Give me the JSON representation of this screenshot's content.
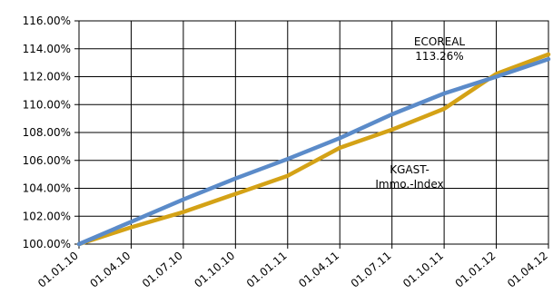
{
  "chart_data": {
    "type": "line",
    "title": "",
    "xlabel": "",
    "ylabel": "",
    "x": [
      "01.01.10",
      "01.04.10",
      "01.07.10",
      "01.10.10",
      "01.01.11",
      "01.04.11",
      "01.07.11",
      "01.10.11",
      "01.01.12",
      "01.04.12"
    ],
    "ylim": [
      100,
      116
    ],
    "y_ticks": [
      "100.00%",
      "102.00%",
      "104.00%",
      "106.00%",
      "108.00%",
      "110.00%",
      "112.00%",
      "114.00%",
      "116.00%"
    ],
    "grid": true,
    "legend": "none",
    "series": [
      {
        "name": "ECOREAL",
        "color": "#5b8bc9",
        "values": [
          100.0,
          101.6,
          103.2,
          104.7,
          106.1,
          107.6,
          109.3,
          110.8,
          112.0,
          113.26
        ]
      },
      {
        "name": "KGAST-Immo.-Index",
        "color": "#d4a216",
        "values": [
          100.0,
          101.2,
          102.3,
          103.6,
          104.9,
          106.9,
          108.2,
          109.7,
          112.2,
          113.6
        ]
      }
    ],
    "annotations": [
      {
        "id": "ecoreal",
        "lines": [
          "ECOREAL",
          "113.26%"
        ]
      },
      {
        "id": "kgast",
        "lines": [
          "KGAST-",
          "Immo.-Index"
        ]
      }
    ]
  }
}
